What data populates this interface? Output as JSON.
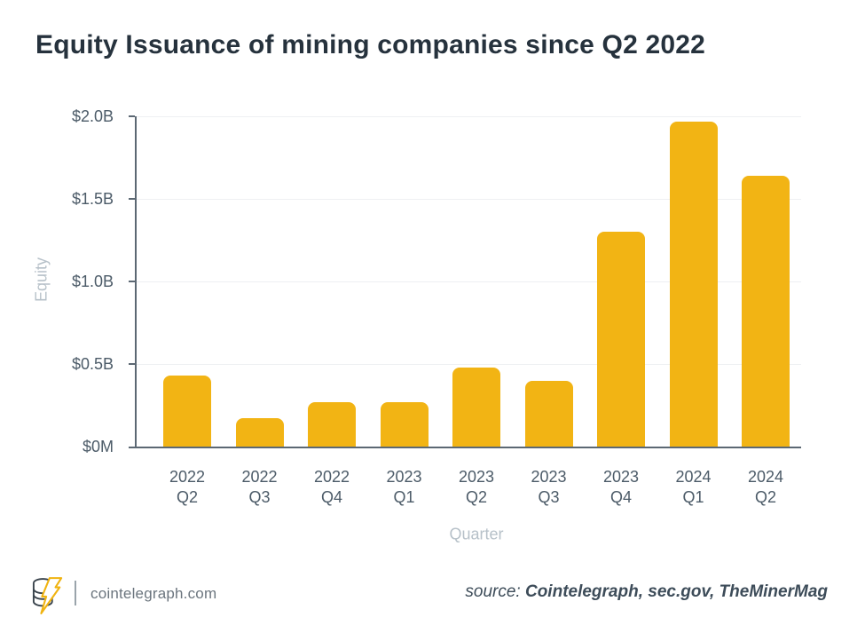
{
  "chart_data": {
    "type": "bar",
    "title": "Equity Issuance of mining companies since Q2 2022",
    "xlabel": "Quarter",
    "ylabel": "Equity",
    "unit": "USD billions",
    "categories": [
      [
        "2022",
        "Q2"
      ],
      [
        "2022",
        "Q3"
      ],
      [
        "2022",
        "Q4"
      ],
      [
        "2023",
        "Q1"
      ],
      [
        "2023",
        "Q2"
      ],
      [
        "2023",
        "Q3"
      ],
      [
        "2023",
        "Q4"
      ],
      [
        "2024",
        "Q1"
      ],
      [
        "2024",
        "Q2"
      ]
    ],
    "values": [
      0.43,
      0.17,
      0.27,
      0.27,
      0.48,
      0.4,
      1.3,
      1.97,
      1.64
    ],
    "ylim": [
      0,
      2.0
    ],
    "yticks": [
      {
        "label": "$0M",
        "value": 0
      },
      {
        "label": "$0.5B",
        "value": 0.5
      },
      {
        "label": "$1.0B",
        "value": 1.0
      },
      {
        "label": "$1.5B",
        "value": 1.5
      },
      {
        "label": "$2.0B",
        "value": 2.0
      }
    ],
    "grid": true,
    "legend": false,
    "bar_color": "#F2B414",
    "colors": {
      "axis": "#5C6873",
      "gridline": "#EEF0F2",
      "tick_text": "#4C5B68",
      "axis_title_text": "#B7C1C9",
      "title_text": "#26323D"
    }
  },
  "footer": {
    "site": "cointelegraph.com",
    "source_prefix": "source:",
    "source_text": "Cointelegraph, sec.gov, TheMinerMag",
    "logo": "cointelegraph-coin-bolt-logo"
  }
}
